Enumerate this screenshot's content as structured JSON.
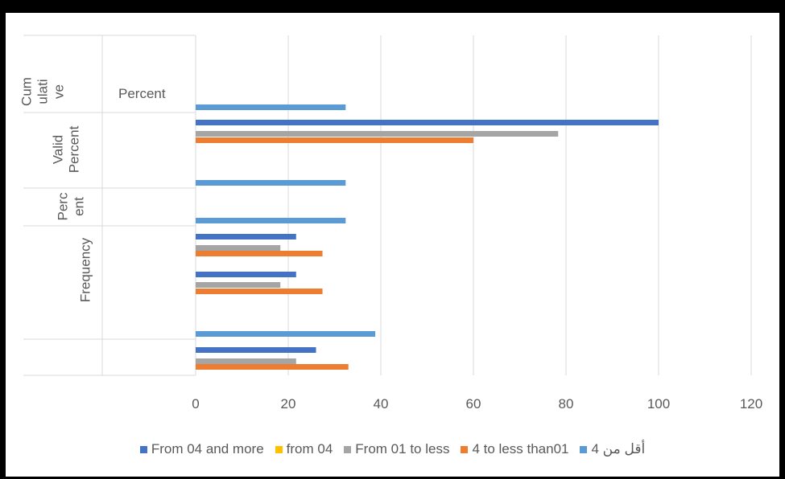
{
  "chart_data": {
    "type": "bar",
    "orientation": "horizontal",
    "title": "",
    "xlim": [
      0,
      120
    ],
    "x_ticks": [
      "0",
      "20",
      "40",
      "60",
      "80",
      "100",
      "120"
    ],
    "grid": true,
    "legend_position": "bottom",
    "category_groups": [
      {
        "label_lines": [
          "Cum",
          "ulati",
          "ve"
        ],
        "label_side": "Percent"
      },
      {
        "label_lines": [
          "Valid",
          "Percent"
        ]
      },
      {
        "label_lines": [
          "Perc",
          "ent"
        ]
      },
      {
        "label_lines": [
          "Frequency"
        ]
      },
      {
        "label_lines": []
      }
    ],
    "series": [
      {
        "name": "From 04 and more",
        "color": "#4472C4",
        "values": [
          null,
          100,
          null,
          21.7,
          21.7,
          26
        ]
      },
      {
        "name": "from 04",
        "color": "#FFC000",
        "values": [
          null,
          null,
          null,
          null,
          null,
          null
        ]
      },
      {
        "name": "From 01 to less",
        "color": "#A5A5A5",
        "values": [
          null,
          78.3,
          null,
          18.3,
          18.3,
          21.7
        ]
      },
      {
        "name": "4 to less than01",
        "color": "#ED7D31",
        "values": [
          null,
          60,
          null,
          27.4,
          27.4,
          33
        ]
      },
      {
        "name": "أقل من 4",
        "color": "#5B9BD5",
        "values": [
          32.4,
          null,
          32.4,
          32.4,
          null,
          38.8
        ]
      }
    ]
  }
}
